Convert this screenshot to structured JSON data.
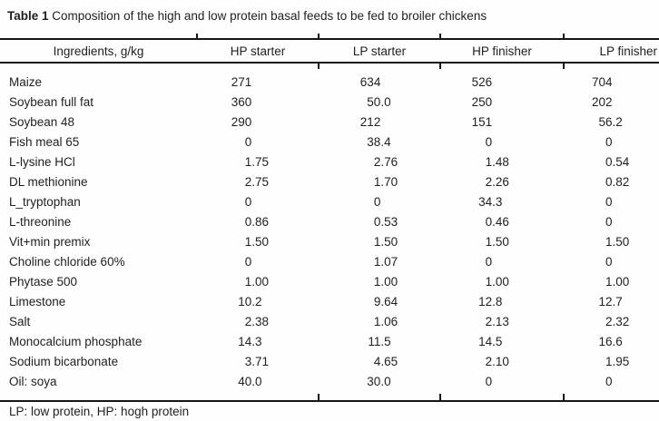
{
  "title": {
    "prefix": "Table 1",
    "rest": " Composition of the high and low protein basal feeds to be fed to broiler chickens"
  },
  "table": {
    "columns": [
      "Ingredients, g/kg",
      "HP starter",
      "LP starter",
      "HP finisher",
      "LP finisher"
    ],
    "rows": [
      {
        "ingredient": "Maize",
        "values": [
          "271",
          "634",
          "526",
          "704"
        ]
      },
      {
        "ingredient": "Soybean full fat",
        "values": [
          "360",
          "50.0",
          "250",
          "202"
        ]
      },
      {
        "ingredient": "Soybean 48",
        "values": [
          "290",
          "212",
          "151",
          "56.2"
        ]
      },
      {
        "ingredient": "Fish meal 65",
        "values": [
          "0",
          "38.4",
          "0",
          "0"
        ]
      },
      {
        "ingredient": "L-lysine HCl",
        "values": [
          "1.75",
          "2.76",
          "1.48",
          "0.54"
        ]
      },
      {
        "ingredient": "DL methionine",
        "values": [
          "2.75",
          "1.70",
          "2.26",
          "0.82"
        ]
      },
      {
        "ingredient": "L_tryptophan",
        "values": [
          "0",
          "0",
          "34.3",
          "0"
        ]
      },
      {
        "ingredient": "L-threonine",
        "values": [
          "0.86",
          "0.53",
          "0.46",
          "0"
        ]
      },
      {
        "ingredient": "Vit+min premix",
        "values": [
          "1.50",
          "1.50",
          "1.50",
          "1.50"
        ]
      },
      {
        "ingredient": "Choline chloride 60%",
        "values": [
          "0",
          "1.07",
          "0",
          "0"
        ]
      },
      {
        "ingredient": "Phytase 500",
        "values": [
          "1.00",
          "1.00",
          "1.00",
          "1.00"
        ]
      },
      {
        "ingredient": "Limestone",
        "values": [
          "10.2",
          "9.64",
          "12.8",
          "12.7"
        ]
      },
      {
        "ingredient": "Salt",
        "values": [
          "2.38",
          "1.06",
          "2.13",
          "2.32"
        ]
      },
      {
        "ingredient": "Monocalcium phosphate",
        "values": [
          "14.3",
          "11.5",
          "14.5",
          "16.6"
        ]
      },
      {
        "ingredient": "Sodium bicarbonate",
        "values": [
          "3.71",
          "4.65",
          "2.10",
          "1.95"
        ]
      },
      {
        "ingredient": "Oil: soya",
        "values": [
          "40.0",
          "30.0",
          "0",
          "0"
        ]
      }
    ]
  },
  "footnote": {
    "text": "LP: low protein, HP: hogh protein"
  }
}
